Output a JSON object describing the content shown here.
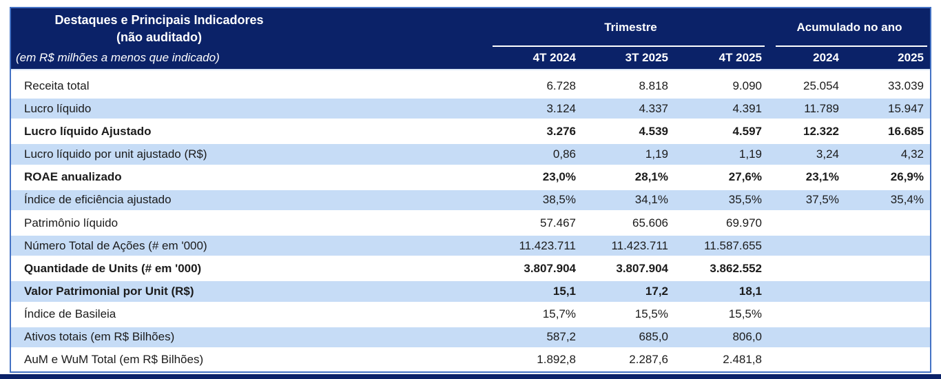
{
  "colors": {
    "navy": "#0B2268",
    "stripe_blue": "#C6DCF6",
    "border_blue": "#4472C4",
    "header_text": "#FFFFFF",
    "body_text": "#1B1B1B"
  },
  "header": {
    "title_line1": "Destaques e Principais Indicadores",
    "title_line2": "(não auditado)",
    "note": "(em R$ milhões a menos que indicado)",
    "groups": [
      {
        "label": "Trimestre",
        "columns": [
          "4T 2024",
          "3T 2025",
          "4T 2025"
        ]
      },
      {
        "label": "Acumulado no ano",
        "columns": [
          "2024",
          "2025"
        ]
      }
    ]
  },
  "table": {
    "column_headers": [
      "4T 2024",
      "3T 2025",
      "4T 2025",
      "2024",
      "2025"
    ],
    "rows": [
      {
        "label": "Receita total",
        "values": [
          "6.728",
          "8.818",
          "9.090",
          "25.054",
          "33.039"
        ],
        "bold": false
      },
      {
        "label": "Lucro líquido",
        "values": [
          "3.124",
          "4.337",
          "4.391",
          "11.789",
          "15.947"
        ],
        "bold": false
      },
      {
        "label": "Lucro líquido Ajustado",
        "values": [
          "3.276",
          "4.539",
          "4.597",
          "12.322",
          "16.685"
        ],
        "bold": true
      },
      {
        "label": "Lucro líquido por unit ajustado (R$)",
        "values": [
          "0,86",
          "1,19",
          "1,19",
          "3,24",
          "4,32"
        ],
        "bold": false
      },
      {
        "label": "ROAE anualizado",
        "values": [
          "23,0%",
          "28,1%",
          "27,6%",
          "23,1%",
          "26,9%"
        ],
        "bold": true
      },
      {
        "label": "Índice de eficiência ajustado",
        "values": [
          "38,5%",
          "34,1%",
          "35,5%",
          "37,5%",
          "35,4%"
        ],
        "bold": false
      },
      {
        "label": "Patrimônio líquido",
        "values": [
          "57.467",
          "65.606",
          "69.970",
          "",
          ""
        ],
        "bold": false
      },
      {
        "label": "Número Total de Ações (# em '000)",
        "values": [
          "11.423.711",
          "11.423.711",
          "11.587.655",
          "",
          ""
        ],
        "bold": false
      },
      {
        "label": "Quantidade de Units (# em '000)",
        "values": [
          "3.807.904",
          "3.807.904",
          "3.862.552",
          "",
          ""
        ],
        "bold": true
      },
      {
        "label": "Valor Patrimonial por Unit (R$)",
        "values": [
          "15,1",
          "17,2",
          "18,1",
          "",
          ""
        ],
        "bold": true
      },
      {
        "label": "Índice de Basileia",
        "values": [
          "15,7%",
          "15,5%",
          "15,5%",
          "",
          ""
        ],
        "bold": false
      },
      {
        "label": "Ativos totais (em R$ Bilhões)",
        "values": [
          "587,2",
          "685,0",
          "806,0",
          "",
          ""
        ],
        "bold": false
      },
      {
        "label": "AuM e WuM Total (em R$ Bilhões)",
        "values": [
          "1.892,8",
          "2.287,6",
          "2.481,8",
          "",
          ""
        ],
        "bold": false
      }
    ]
  }
}
